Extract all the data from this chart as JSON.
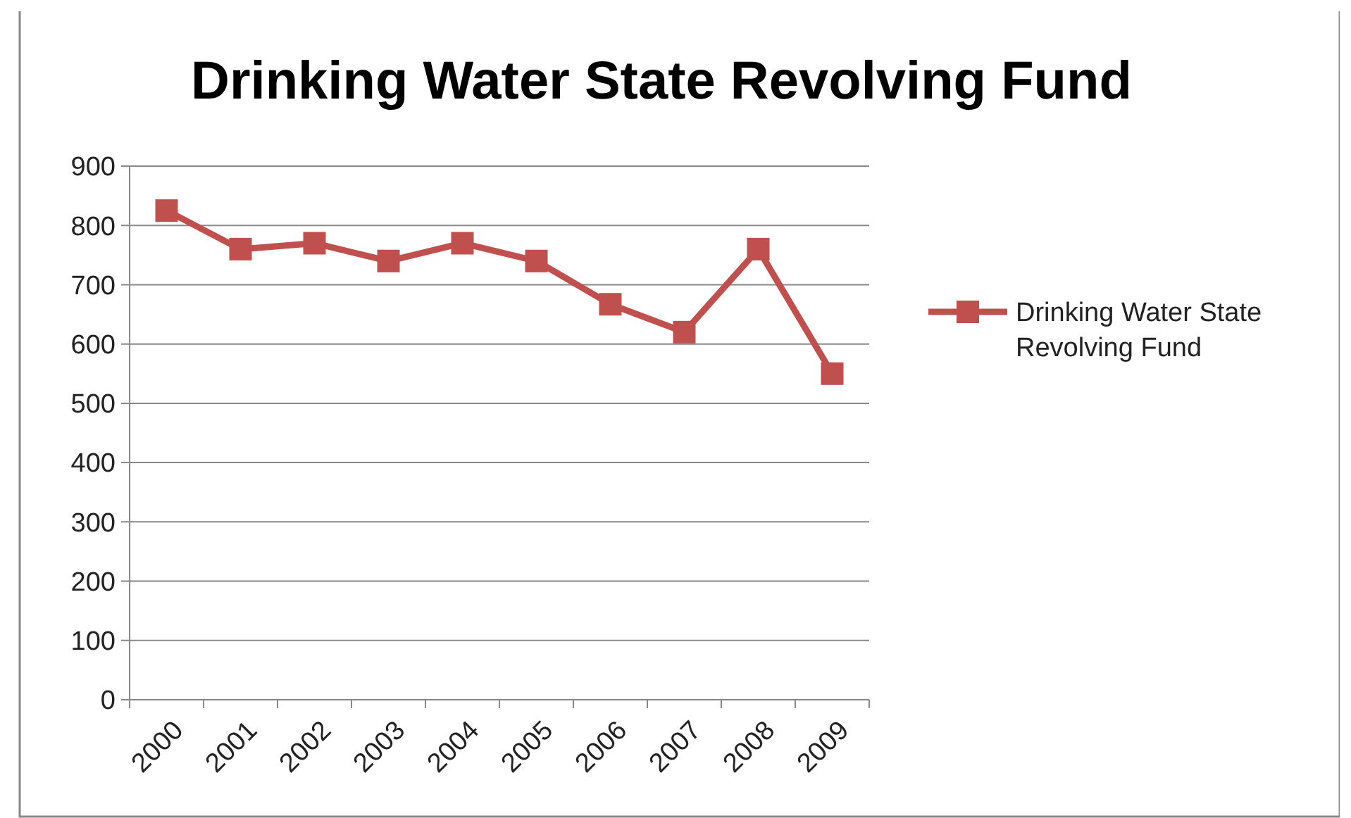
{
  "chart_data": {
    "type": "line",
    "title": "Drinking Water State Revolving Fund",
    "categories": [
      "2000",
      "2001",
      "2002",
      "2003",
      "2004",
      "2005",
      "2006",
      "2007",
      "2008",
      "2009"
    ],
    "series": [
      {
        "name": "Drinking Water State Revolving Fund",
        "color": "#c0504d",
        "values": [
          825,
          760,
          770,
          740,
          770,
          740,
          667,
          620,
          760,
          550
        ]
      }
    ],
    "ylim": [
      0,
      900
    ],
    "yticks": [
      0,
      100,
      200,
      300,
      400,
      500,
      600,
      700,
      800,
      900
    ],
    "grid": "y",
    "legend": "right",
    "marker": "square"
  }
}
